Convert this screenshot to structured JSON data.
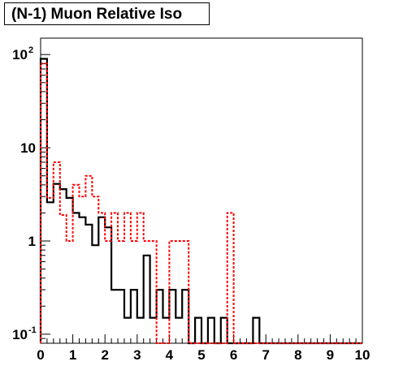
{
  "chart_data": {
    "type": "histogram",
    "title": "(N-1) Muon Relative Iso",
    "xlabel": "",
    "ylabel": "",
    "xlim": [
      0,
      10
    ],
    "ylim": [
      0.08,
      150
    ],
    "yscale": "log",
    "grid": false,
    "x_tick_labels": [
      "0",
      "1",
      "2",
      "3",
      "4",
      "5",
      "6",
      "7",
      "8",
      "9",
      "10"
    ],
    "y_tick_labels": [
      {
        "value": 0.1,
        "base": "10",
        "exp": "-1"
      },
      {
        "value": 1,
        "base": "1",
        "exp": ""
      },
      {
        "value": 10,
        "base": "10",
        "exp": ""
      },
      {
        "value": 100,
        "base": "10",
        "exp": "2"
      }
    ],
    "bin_width": 0.2,
    "series": [
      {
        "style": "solid-black",
        "color": "#000000",
        "values": [
          90,
          2.6,
          4.1,
          3.6,
          2.9,
          2.0,
          1.8,
          1.5,
          0.9,
          1.8,
          1.4,
          0.3,
          0.3,
          0.15,
          0.3,
          0.15,
          0.7,
          0.15,
          0.3,
          0.15,
          0.3,
          0.15,
          0.3,
          0,
          0.15,
          0,
          0.15,
          0,
          0.15,
          0,
          0,
          0,
          0,
          0.15,
          0,
          0,
          0,
          0,
          0,
          0,
          0,
          0,
          0,
          0,
          0,
          0,
          0,
          0,
          0,
          0
        ]
      },
      {
        "style": "dashed-red",
        "color": "#ff0000",
        "values": [
          80,
          2.9,
          7.0,
          1.9,
          1.0,
          4.0,
          3.0,
          5.0,
          3.0,
          2.0,
          1.0,
          2.0,
          1.0,
          2.0,
          1.0,
          2.0,
          1.0,
          1.0,
          0,
          0,
          1.0,
          1.0,
          1.0,
          0,
          0,
          0,
          0,
          0,
          0,
          2.0,
          0,
          0,
          0,
          0,
          0,
          0,
          0,
          0,
          0,
          0,
          0,
          0,
          0,
          0,
          0,
          0,
          0,
          0,
          0,
          0
        ]
      }
    ]
  }
}
